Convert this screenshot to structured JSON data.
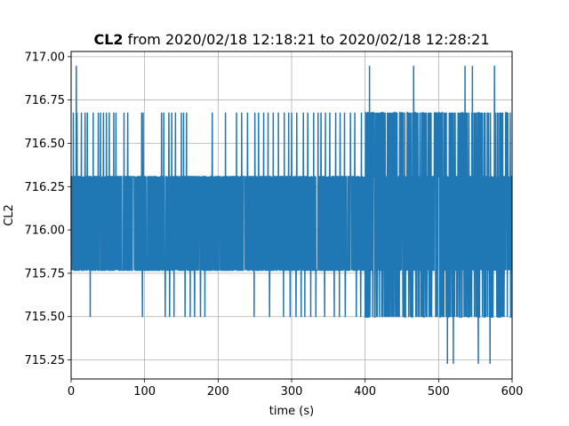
{
  "chart_data": {
    "type": "line",
    "title": {
      "bold": "CL2",
      "rest": " from 2020/02/18 12:18:21 to 2020/02/18 12:28:21"
    },
    "xlabel": "time (s)",
    "ylabel": "CL2",
    "xlim": [
      0,
      600
    ],
    "ylim": [
      715.14,
      717.03
    ],
    "x_ticks": [
      0,
      100,
      200,
      300,
      400,
      500,
      600
    ],
    "x_tick_labels": [
      "0",
      "100",
      "200",
      "300",
      "400",
      "500",
      "600"
    ],
    "y_ticks": [
      715.25,
      715.5,
      715.75,
      716.0,
      716.25,
      716.5,
      716.75,
      717.0
    ],
    "y_tick_labels": [
      "715.25",
      "715.50",
      "715.75",
      "716.00",
      "716.25",
      "716.50",
      "716.75",
      "717.00"
    ],
    "grid": true,
    "color": "#1f77b4",
    "series": [
      {
        "values_description_levels": [
          715.2275,
          715.4975,
          715.7675,
          716.0375,
          716.3075,
          716.6775,
          716.9475
        ],
        "base_band": [
          715.7675,
          716.3075
        ],
        "x_start": 0,
        "x_end": 600,
        "high_spikes_716_94": [
          7,
          406,
          466,
          536,
          546,
          576
        ],
        "low_spikes_715_23": [
          512,
          520,
          554,
          570
        ],
        "upper_spikes_716_68": [
          3,
          8,
          14,
          19,
          22,
          30,
          37,
          40,
          44,
          48,
          52,
          58,
          61,
          72,
          77,
          96,
          98,
          123,
          126,
          133,
          137,
          142,
          150,
          153,
          157,
          192,
          210,
          225,
          232,
          240,
          250,
          255,
          262,
          268,
          275,
          282,
          290,
          296,
          300,
          307,
          316,
          322,
          330,
          336,
          340,
          346,
          352,
          360,
          366,
          372,
          380,
          386,
          395,
          402
        ],
        "lower_spikes_715_50": [
          26,
          97,
          128,
          134,
          140,
          155,
          162,
          168,
          176,
          182,
          249,
          255,
          262,
          270,
          282,
          289,
          298,
          306,
          313,
          318,
          326,
          333,
          340,
          345,
          352,
          358,
          365,
          373,
          380,
          388,
          394,
          400
        ],
        "dense_region_start": 400
      }
    ]
  }
}
